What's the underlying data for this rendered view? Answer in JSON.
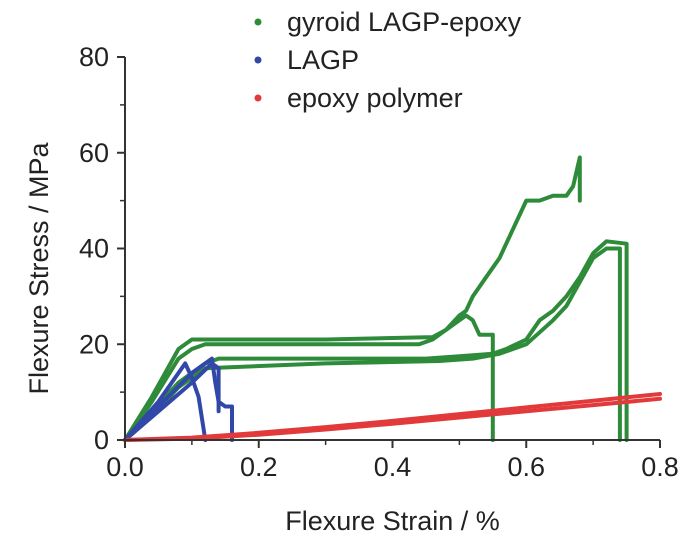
{
  "chart_data": {
    "type": "line",
    "title": "",
    "xlabel": "Flexure Strain / %",
    "ylabel": "Flexure Stress / MPa",
    "xlim": [
      0.0,
      0.8
    ],
    "ylim": [
      0,
      80
    ],
    "xticks": [
      0.0,
      0.2,
      0.4,
      0.6,
      0.8
    ],
    "xtick_labels": [
      "0.0",
      "0.2",
      "0.4",
      "0.6",
      "0.8"
    ],
    "yticks": [
      0,
      20,
      40,
      60,
      80
    ],
    "ytick_labels": [
      "0",
      "20",
      "40",
      "60",
      "80"
    ],
    "grid": false,
    "legend_position": "top-right",
    "series": [
      {
        "name": "gyroid LAGP-epoxy",
        "color": "#2e8b3a",
        "curves": [
          {
            "x": [
              0.0,
              0.04,
              0.08,
              0.1,
              0.12,
              0.3,
              0.46,
              0.48,
              0.5,
              0.51,
              0.52,
              0.54,
              0.56,
              0.58,
              0.6,
              0.62,
              0.64,
              0.66,
              0.67,
              0.68,
              0.68
            ],
            "y": [
              0,
              9,
              19,
              21,
              21,
              21,
              21.5,
              23,
              26,
              27,
              30,
              34,
              38,
              44,
              50,
              50,
              51,
              51,
              53,
              59,
              50
            ]
          },
          {
            "x": [
              0.0,
              0.04,
              0.08,
              0.1,
              0.12,
              0.3,
              0.44,
              0.46,
              0.48,
              0.5,
              0.51,
              0.52,
              0.53,
              0.55,
              0.55
            ],
            "y": [
              0,
              8,
              17,
              19,
              20,
              20,
              20,
              21,
              23,
              25,
              26,
              25,
              22,
              22,
              0
            ]
          },
          {
            "x": [
              0.0,
              0.04,
              0.08,
              0.12,
              0.14,
              0.3,
              0.45,
              0.5,
              0.55,
              0.57,
              0.6,
              0.62,
              0.64,
              0.66,
              0.68,
              0.7,
              0.72,
              0.75,
              0.75
            ],
            "y": [
              0,
              6,
              12,
              16,
              17,
              17,
              17,
              17.5,
              18,
              19,
              21,
              25,
              27,
              30,
              34,
              39,
              41.5,
              41,
              0
            ]
          },
          {
            "x": [
              0.0,
              0.04,
              0.08,
              0.12,
              0.3,
              0.47,
              0.52,
              0.56,
              0.6,
              0.64,
              0.66,
              0.68,
              0.7,
              0.72,
              0.74,
              0.74
            ],
            "y": [
              0,
              5,
              11,
              15,
              16,
              16.5,
              17,
              18,
              20,
              25,
              28,
              33,
              38,
              40,
              40,
              0
            ]
          }
        ]
      },
      {
        "name": "LAGP",
        "color": "#3248a8",
        "curves": [
          {
            "x": [
              0.0,
              0.05,
              0.09,
              0.1,
              0.11,
              0.12
            ],
            "y": [
              0,
              8,
              16,
              13,
              9,
              0
            ]
          },
          {
            "x": [
              0.0,
              0.05,
              0.1,
              0.13,
              0.135,
              0.14,
              0.15,
              0.16,
              0.16
            ],
            "y": [
              0,
              7,
              14,
              17,
              12,
              8,
              7,
              7,
              0
            ]
          },
          {
            "x": [
              0.0,
              0.05,
              0.1,
              0.13,
              0.14,
              0.14
            ],
            "y": [
              0,
              6,
              12,
              16,
              15,
              6
            ]
          }
        ]
      },
      {
        "name": "epoxy polymer",
        "color": "#e23a3a",
        "curves": [
          {
            "x": [
              0.0,
              0.1,
              0.2,
              0.3,
              0.4,
              0.5,
              0.6,
              0.7,
              0.8
            ],
            "y": [
              0,
              0.5,
              1.5,
              2.7,
              4.0,
              5.4,
              6.8,
              8.2,
              9.6
            ]
          },
          {
            "x": [
              0.0,
              0.1,
              0.2,
              0.3,
              0.4,
              0.5,
              0.6,
              0.7,
              0.8
            ],
            "y": [
              0,
              0.3,
              1.1,
              2.2,
              3.4,
              4.7,
              6.0,
              7.3,
              8.6
            ]
          }
        ]
      }
    ]
  }
}
